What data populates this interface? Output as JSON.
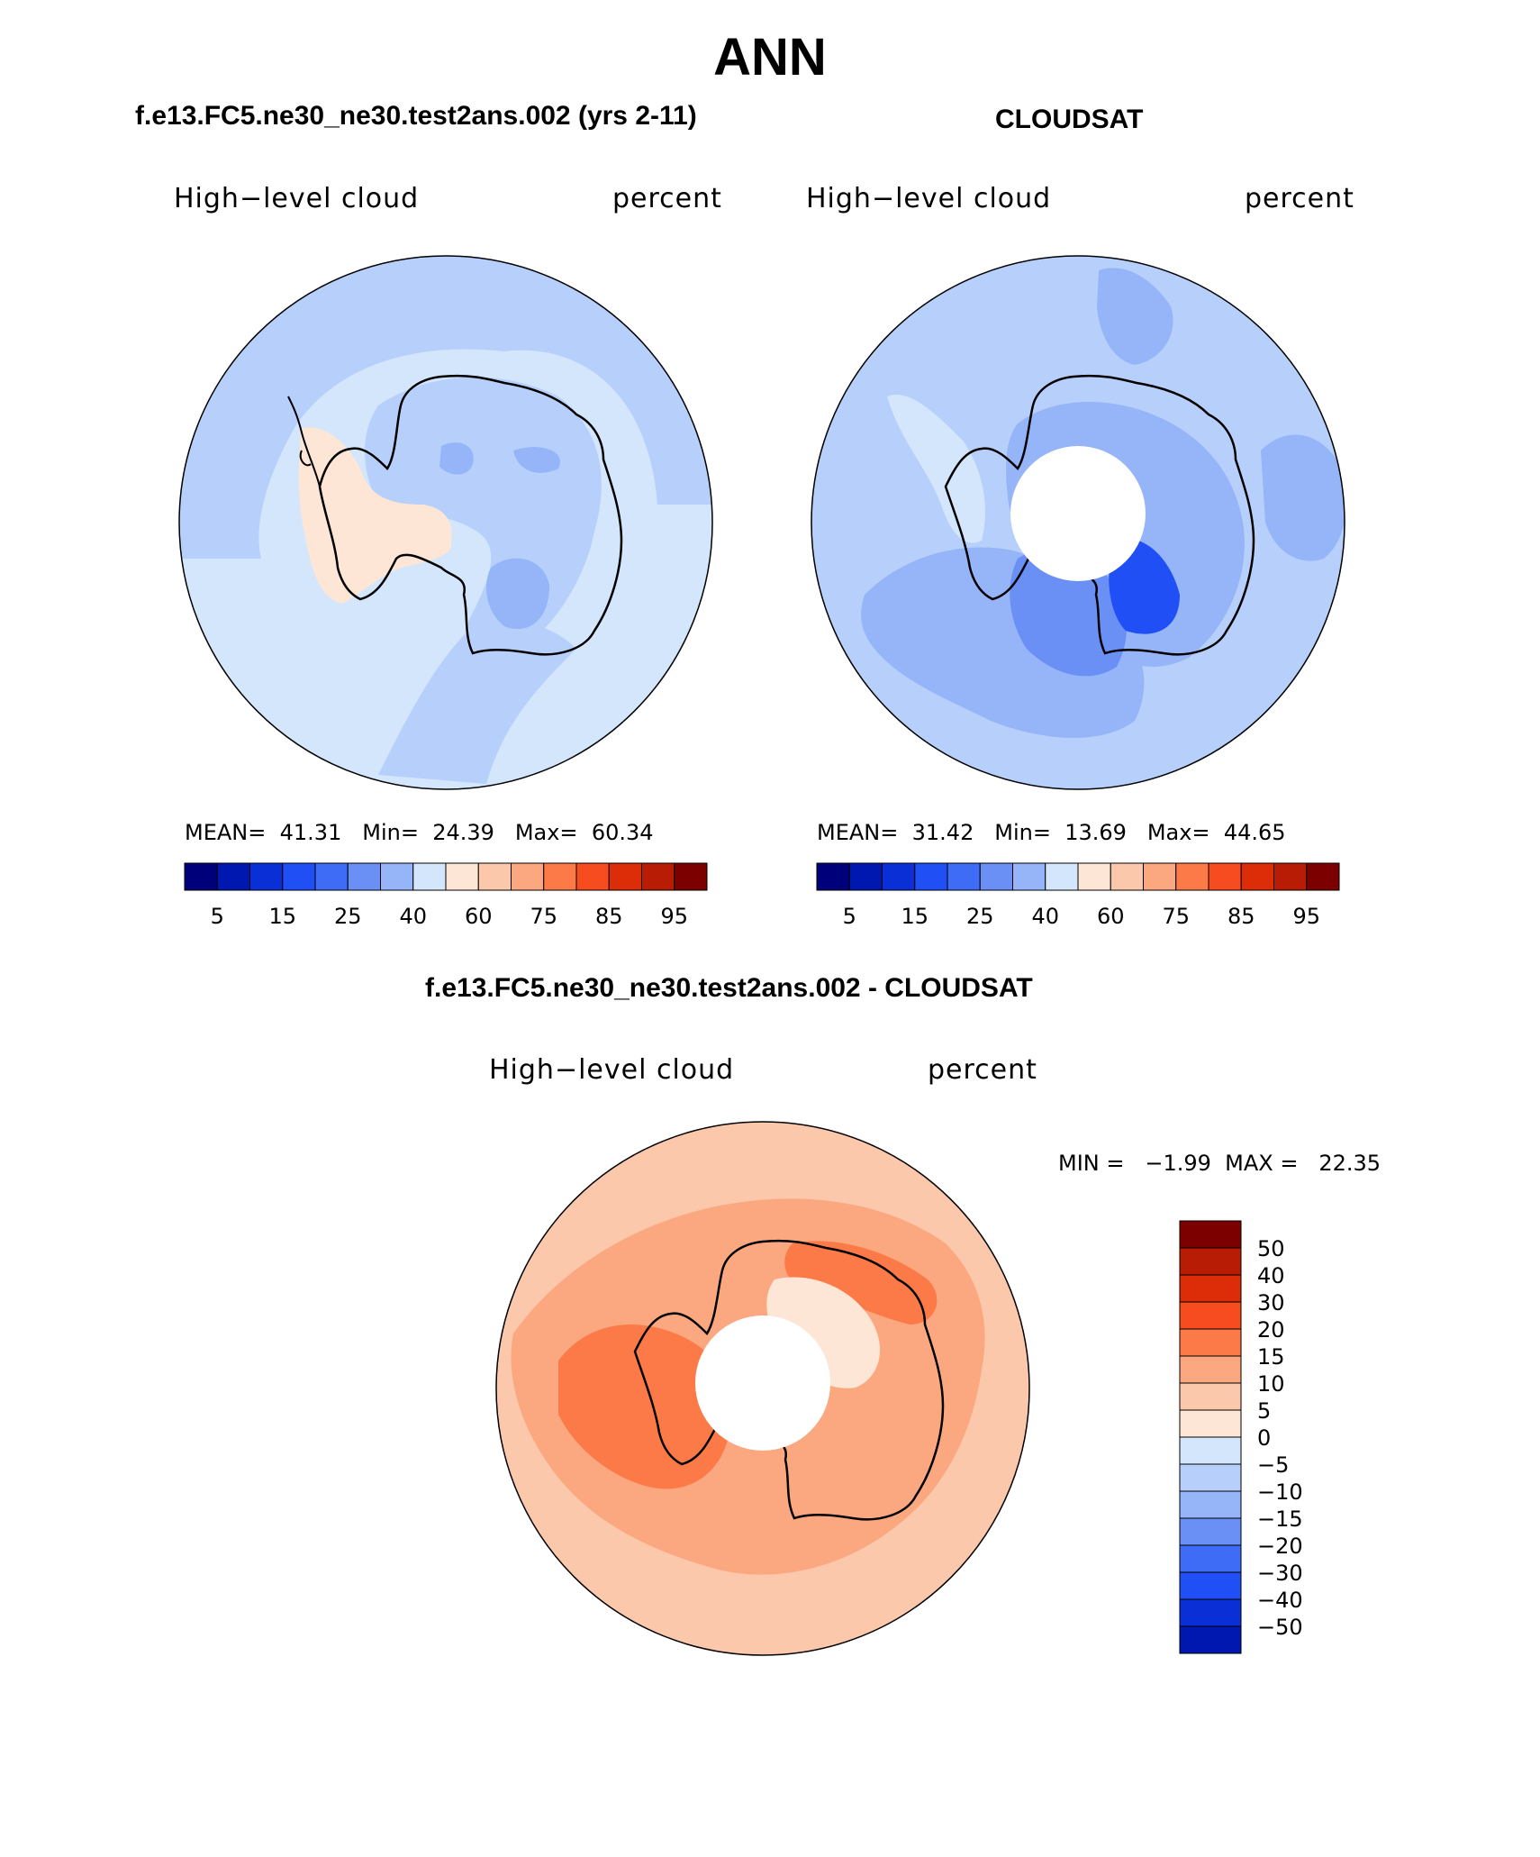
{
  "main_title": "ANN",
  "panels": [
    {
      "case_title": "f.e13.FC5.ne30_ne30.test2ans.002 (yrs 2-11)",
      "variable_label": "High−level cloud",
      "units_label": "percent",
      "stats": {
        "mean_label": "MEAN=",
        "mean": "41.31",
        "min_label": "Min=",
        "min": "24.39",
        "max_label": "Max=",
        "max": "60.34"
      },
      "has_pole_hole": false
    },
    {
      "case_title": "CLOUDSAT",
      "variable_label": "High−level cloud",
      "units_label": "percent",
      "stats": {
        "mean_label": "MEAN=",
        "mean": "31.42",
        "min_label": "Min=",
        "min": "13.69",
        "max_label": "Max=",
        "max": "44.65"
      },
      "has_pole_hole": true
    }
  ],
  "field_colorbar": {
    "colors": [
      "#00007a",
      "#0018b0",
      "#0a2fd6",
      "#1f4ff5",
      "#3f6cf6",
      "#6a8ff5",
      "#96b5f8",
      "#d3e6fc",
      "#fde6d5",
      "#fcc8ab",
      "#fba880",
      "#fb7a47",
      "#f74c1f",
      "#dc2d08",
      "#b81c05",
      "#7d0000"
    ],
    "tick_labels": [
      "5",
      "15",
      "25",
      "40",
      "60",
      "75",
      "85",
      "95"
    ]
  },
  "diff_panel": {
    "case_title": "f.e13.FC5.ne30_ne30.test2ans.002 - CLOUDSAT",
    "variable_label": "High−level cloud",
    "units_label": "percent",
    "stats_line": "MIN =   −1.99  MAX =   22.35",
    "colorbar": {
      "colors": [
        "#7d0000",
        "#b81c05",
        "#dc2d08",
        "#f74c1f",
        "#fb7a47",
        "#fba880",
        "#fcc8ab",
        "#fde6d5",
        "#d3e6fc",
        "#b7d0fb",
        "#96b5f8",
        "#6a8ff5",
        "#3f6cf6",
        "#1f4ff5",
        "#0a2fd6",
        "#0018b0"
      ],
      "tick_labels": [
        "50",
        "40",
        "30",
        "20",
        "15",
        "10",
        "5",
        "0",
        "−5",
        "−10",
        "−15",
        "−20",
        "−30",
        "−40",
        "−50"
      ]
    }
  },
  "map_colors": {
    "coastline": "#000000",
    "model_ocean": "#d3e6fc",
    "model_mid": "#b7d0fb",
    "model_inner": "#96b5f8",
    "model_peninsula": "#fde6d5",
    "obs_outer": "#b7d0fb",
    "obs_mid": "#96b5f8",
    "obs_inner": "#6a8ff5",
    "obs_dark": "#1f4ff5",
    "diff_outer": "#fcc8ab",
    "diff_mid": "#fba880",
    "diff_inner": "#fb7a47",
    "diff_pale": "#fde6d5"
  }
}
